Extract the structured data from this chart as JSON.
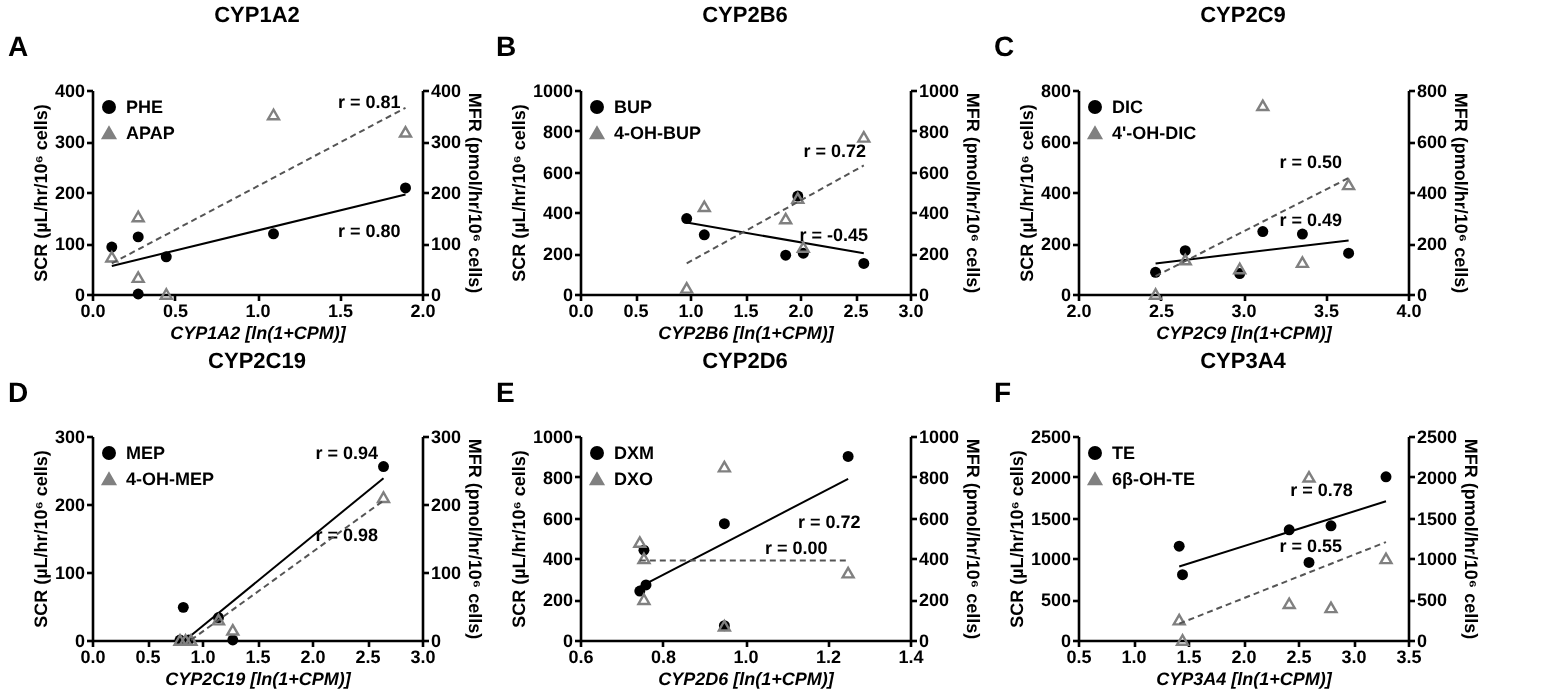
{
  "chart_data": [
    {
      "type": "scatter",
      "title": "CYP1A2",
      "xlabel": "CYP1A2 [ln(1+CPM)]",
      "ylabel": "SCR (µL/hr/10⁶ cells)",
      "y2label": "MFR (pmol/hr/10⁶ cells)",
      "xlim": [
        0,
        2
      ],
      "xticks": [
        {
          "value": 0,
          "label": "0.0"
        },
        0.5,
        {
          "value": 1,
          "label": "1.0"
        },
        1.5,
        {
          "value": 2,
          "label": "2.0"
        }
      ],
      "ylim": [
        0,
        400
      ],
      "yticks": [
        0,
        100,
        200,
        300,
        400
      ],
      "y2lim": [
        0,
        400
      ],
      "y2ticks": [
        0,
        100,
        200,
        300,
        400
      ],
      "legend": "top left",
      "annotations": [
        "A",
        "r = 0.81",
        "r = 0.80"
      ],
      "series": [
        {
          "name": "PHE",
          "marker": "circle",
          "color": "#000000",
          "x": [
            0.12,
            0.28,
            0.28,
            0.45,
            1.1,
            1.9
          ],
          "values": [
            92,
            112,
            0,
            73,
            118,
            208
          ]
        },
        {
          "name": "APAP",
          "marker": "triangle",
          "axis": "y2",
          "color": "#808080",
          "x": [
            0.12,
            0.28,
            0.28,
            0.45,
            1.1,
            1.9
          ],
          "values": [
            73,
            152,
            33,
            0,
            352,
            318
          ]
        },
        {
          "type": "line",
          "line_style": "solid",
          "color": "#000000",
          "x": [
            0.12,
            1.9
          ],
          "values": [
            55,
            195
          ]
        },
        {
          "type": "line",
          "line_style": "dashed",
          "axis": "y2",
          "color": "#555555",
          "x": [
            0.12,
            1.9
          ],
          "values": [
            60,
            365
          ]
        }
      ]
    },
    {
      "type": "scatter",
      "title": "CYP2B6",
      "xlabel": "CYP2B6 [ln(1+CPM)]",
      "ylabel": "SCR (µL/hr/10⁶ cells)",
      "y2label": "MFR (pmol/hr/10⁶ cells)",
      "xlim": [
        0,
        3
      ],
      "xticks": [
        {
          "value": 0,
          "label": "0.0"
        },
        0.5,
        {
          "value": 1,
          "label": "1.0"
        },
        1.5,
        {
          "value": 2,
          "label": "2.0"
        },
        2.5,
        {
          "value": 3,
          "label": "3.0"
        }
      ],
      "ylim": [
        0,
        1000
      ],
      "yticks": [
        0,
        200,
        400,
        600,
        800,
        1000
      ],
      "y2lim": [
        0,
        1000
      ],
      "y2ticks": [
        0,
        200,
        400,
        600,
        800,
        1000
      ],
      "legend": "top left",
      "annotations": [
        "B",
        "r = 0.72",
        "r = -0.45"
      ],
      "series": [
        {
          "name": "BUP",
          "marker": "circle",
          "color": "#000000",
          "x": [
            0.97,
            1.13,
            1.87,
            1.98,
            2.03,
            2.58
          ],
          "values": [
            370,
            290,
            190,
            480,
            200,
            150
          ]
        },
        {
          "name": "4-OH-BUP",
          "marker": "triangle",
          "axis": "y2",
          "color": "#808080",
          "x": [
            0.97,
            1.13,
            1.87,
            1.98,
            2.03,
            2.58
          ],
          "values": [
            30,
            430,
            370,
            470,
            230,
            770
          ]
        },
        {
          "type": "line",
          "line_style": "solid",
          "color": "#000000",
          "x": [
            0.97,
            2.58
          ],
          "values": [
            350,
            200
          ]
        },
        {
          "type": "line",
          "line_style": "dashed",
          "axis": "y2",
          "color": "#555555",
          "x": [
            0.97,
            2.58
          ],
          "values": [
            150,
            630
          ]
        }
      ]
    },
    {
      "type": "scatter",
      "title": "CYP2C9",
      "xlabel": "CYP2C9 [ln(1+CPM)]",
      "ylabel": "SCR (µL/hr/10⁶ cells)",
      "y2label": "MFR (pmol/hr/10⁶ cells)",
      "xlim": [
        2,
        4
      ],
      "xticks": [
        {
          "value": 2,
          "label": "2.0"
        },
        2.5,
        {
          "value": 3,
          "label": "3.0"
        },
        3.5,
        {
          "value": 4,
          "label": "4.0"
        }
      ],
      "ylim": [
        0,
        800
      ],
      "yticks": [
        0,
        200,
        400,
        600,
        800
      ],
      "y2lim": [
        0,
        800
      ],
      "y2ticks": [
        0,
        200,
        400,
        600,
        800
      ],
      "legend": "top left",
      "annotations": [
        "C",
        "r = 0.50",
        "r = 0.49"
      ],
      "series": [
        {
          "name": "DIC",
          "marker": "circle",
          "color": "#000000",
          "x": [
            2.47,
            2.65,
            2.98,
            3.12,
            3.36,
            3.64
          ],
          "values": [
            85,
            170,
            80,
            245,
            235,
            160
          ]
        },
        {
          "name": "4'-OH-DIC",
          "marker": "triangle",
          "axis": "y2",
          "color": "#808080",
          "x": [
            2.47,
            2.65,
            2.98,
            3.12,
            3.36,
            3.64
          ],
          "values": [
            0,
            135,
            100,
            740,
            125,
            430
          ]
        },
        {
          "type": "line",
          "line_style": "solid",
          "color": "#000000",
          "x": [
            2.47,
            3.64
          ],
          "values": [
            120,
            210
          ]
        },
        {
          "type": "line",
          "line_style": "dashed",
          "axis": "y2",
          "color": "#555555",
          "x": [
            2.47,
            3.64
          ],
          "values": [
            70,
            455
          ]
        }
      ]
    },
    {
      "type": "scatter",
      "title": "CYP2C19",
      "xlabel": "CYP2C19 [ln(1+CPM)]",
      "ylabel": "SCR (µL/hr/10⁶ cells)",
      "y2label": "MFR (pmol/hr/10⁶ cells)",
      "xlim": [
        0,
        3
      ],
      "xticks": [
        {
          "value": 0,
          "label": "0.0"
        },
        0.5,
        {
          "value": 1,
          "label": "1.0"
        },
        1.5,
        {
          "value": 2,
          "label": "2.0"
        },
        2.5,
        {
          "value": 3,
          "label": "3.0"
        }
      ],
      "ylim": [
        0,
        300
      ],
      "yticks": [
        0,
        100,
        200,
        300
      ],
      "y2lim": [
        0,
        300
      ],
      "y2ticks": [
        0,
        100,
        200,
        300
      ],
      "legend": "top left",
      "annotations": [
        "D",
        "r = 0.94",
        "r = 0.98"
      ],
      "series": [
        {
          "name": "MEP",
          "marker": "circle",
          "color": "#000000",
          "x": [
            0.8,
            0.83,
            0.88,
            1.15,
            1.28,
            2.65
          ],
          "values": [
            0,
            48,
            0,
            33,
            0,
            255
          ]
        },
        {
          "name": "4-OH-MEP",
          "marker": "triangle",
          "axis": "y2",
          "color": "#808080",
          "x": [
            0.8,
            0.85,
            0.9,
            1.15,
            1.28,
            2.65
          ],
          "values": [
            0,
            0,
            0,
            30,
            15,
            210
          ]
        },
        {
          "type": "line",
          "line_style": "solid",
          "color": "#000000",
          "x": [
            0.85,
            2.65
          ],
          "values": [
            0,
            238
          ]
        },
        {
          "type": "line",
          "line_style": "dashed",
          "axis": "y2",
          "color": "#555555",
          "x": [
            0.9,
            2.65
          ],
          "values": [
            0,
            205
          ]
        }
      ]
    },
    {
      "type": "scatter",
      "title": "CYP2D6",
      "xlabel": "CYP2D6 [ln(1+CPM)]",
      "ylabel": "SCR (µL/hr/10⁶ cells)",
      "y2label": "MFR (pmol/hr/10⁶ cells)",
      "xlim": [
        0.6,
        1.4
      ],
      "xticks": [
        0.6,
        0.8,
        {
          "value": 1,
          "label": "1.0"
        },
        1.2,
        1.4
      ],
      "ylim": [
        0,
        1000
      ],
      "yticks": [
        0,
        200,
        400,
        600,
        800,
        1000
      ],
      "y2lim": [
        0,
        1000
      ],
      "y2ticks": [
        0,
        200,
        400,
        600,
        800,
        1000
      ],
      "legend": "top left",
      "annotations": [
        "E",
        "r = 0.72",
        "r = 0.00"
      ],
      "series": [
        {
          "name": "DXM",
          "marker": "circle",
          "color": "#000000",
          "x": [
            0.745,
            0.755,
            0.76,
            0.95,
            0.95,
            1.25
          ],
          "values": [
            240,
            440,
            270,
            570,
            70,
            900
          ]
        },
        {
          "name": "DXO",
          "marker": "triangle",
          "axis": "y2",
          "color": "#808080",
          "x": [
            0.745,
            0.755,
            0.755,
            0.95,
            0.95,
            1.25
          ],
          "values": [
            480,
            400,
            200,
            850,
            70,
            330
          ]
        },
        {
          "type": "line",
          "line_style": "solid",
          "color": "#000000",
          "x": [
            0.745,
            1.25
          ],
          "values": [
            260,
            790
          ]
        },
        {
          "type": "line",
          "line_style": "dashed",
          "axis": "y2",
          "color": "#555555",
          "x": [
            0.745,
            1.25
          ],
          "values": [
            390,
            390
          ]
        }
      ]
    },
    {
      "type": "scatter",
      "title": "CYP3A4",
      "xlabel": "CYP3A4 [ln(1+CPM)]",
      "ylabel": "SCR (µL/hr/10⁶ cells)",
      "y2label": "MFR (pmol/hr/10⁶ cells)",
      "xlim": [
        0.5,
        3.5
      ],
      "xticks": [
        0.5,
        {
          "value": 1,
          "label": "1.0"
        },
        1.5,
        {
          "value": 2,
          "label": "2.0"
        },
        2.5,
        {
          "value": 3,
          "label": "3.0"
        },
        3.5
      ],
      "ylim": [
        0,
        2500
      ],
      "yticks": [
        0,
        500,
        1000,
        1500,
        2000,
        2500
      ],
      "y2lim": [
        0,
        2500
      ],
      "y2ticks": [
        0,
        500,
        1000,
        1500,
        2000,
        2500
      ],
      "legend": "top left",
      "annotations": [
        "F",
        "r = 0.78",
        "r = 0.55"
      ],
      "series": [
        {
          "name": "TE",
          "marker": "circle",
          "color": "#000000",
          "x": [
            1.42,
            1.45,
            2.42,
            2.6,
            2.8,
            3.3
          ],
          "values": [
            1150,
            800,
            1350,
            950,
            1400,
            2000
          ]
        },
        {
          "name": "6β-OH-TE",
          "marker": "triangle",
          "axis": "y2",
          "color": "#808080",
          "x": [
            1.42,
            1.45,
            2.42,
            2.6,
            2.8,
            3.3
          ],
          "values": [
            250,
            0,
            450,
            2000,
            400,
            1000
          ]
        },
        {
          "type": "line",
          "line_style": "solid",
          "color": "#000000",
          "x": [
            1.42,
            3.3
          ],
          "values": [
            900,
            1700
          ]
        },
        {
          "type": "line",
          "line_style": "dashed",
          "axis": "y2",
          "color": "#555555",
          "x": [
            1.42,
            3.3
          ],
          "values": [
            200,
            1200
          ]
        }
      ]
    }
  ]
}
